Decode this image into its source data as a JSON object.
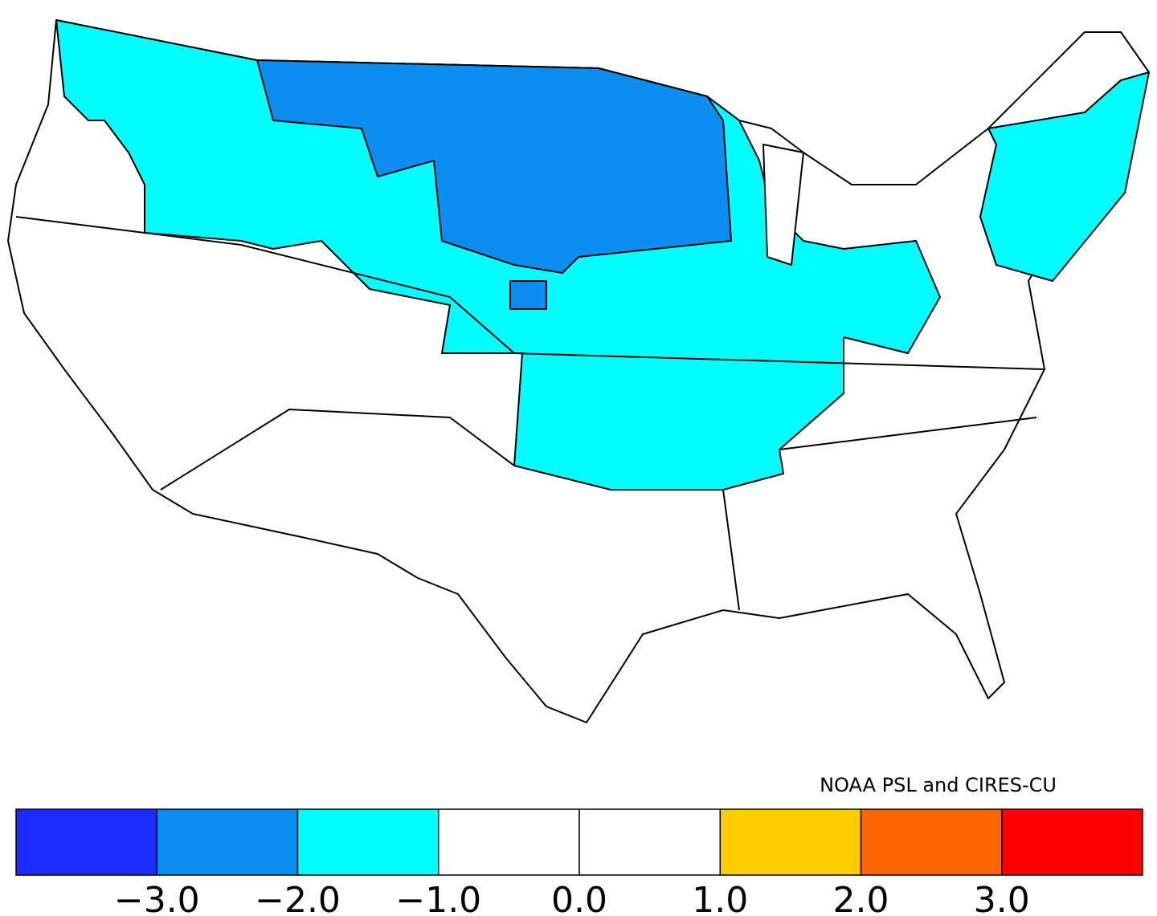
{
  "credit": "NOAA PSL and CIRES-CU",
  "legend": {
    "colors": [
      "#1a2cff",
      "#0c8ef0",
      "#00ffff",
      "#ffffff",
      "#ffffff",
      "#ffcc00",
      "#ff6600",
      "#ff0000"
    ],
    "ticks": [
      "−3.0",
      "−2.0",
      "−1.0",
      "0.0",
      "1.0",
      "2.0",
      "3.0"
    ]
  }
}
